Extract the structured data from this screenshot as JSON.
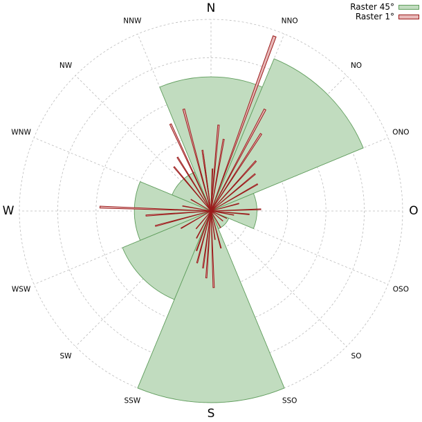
{
  "chart_data": {
    "type": "rose",
    "directions": [
      "N",
      "NNO",
      "NO",
      "ONO",
      "O",
      "OSO",
      "SO",
      "SSO",
      "S",
      "SSW",
      "SW",
      "WSW",
      "W",
      "WNW",
      "NW",
      "NNW"
    ],
    "rmax": 1.0,
    "grid": true,
    "legend_position": "top-right",
    "series": [
      {
        "name": "Raster 45°",
        "color": "#c1dcbf",
        "edge": "#5f9d5c",
        "bin_width_deg": 45,
        "bins": [
          {
            "center": 0,
            "value": 0.7
          },
          {
            "center": 45,
            "value": 0.86
          },
          {
            "center": 90,
            "value": 0.24
          },
          {
            "center": 135,
            "value": 0.1
          },
          {
            "center": 180,
            "value": 1.0
          },
          {
            "center": 225,
            "value": 0.5
          },
          {
            "center": 270,
            "value": 0.4
          },
          {
            "center": 315,
            "value": 0.22
          }
        ]
      },
      {
        "name": "Raster 1°",
        "color": "#e8b9b9",
        "edge": "#9b1b1b",
        "bin_width_deg": 1,
        "bins": [
          {
            "angle": 20,
            "value": 0.97
          },
          {
            "angle": 28,
            "value": 0.6
          },
          {
            "angle": 33,
            "value": 0.48
          },
          {
            "angle": 42,
            "value": 0.35
          },
          {
            "angle": 50,
            "value": 0.3
          },
          {
            "angle": 60,
            "value": 0.28
          },
          {
            "angle": 5,
            "value": 0.45
          },
          {
            "angle": 10,
            "value": 0.38
          },
          {
            "angle": -15,
            "value": 0.55
          },
          {
            "angle": -8,
            "value": 0.3
          },
          {
            "angle": 2,
            "value": 0.22
          },
          {
            "angle": -32,
            "value": 0.33
          },
          {
            "angle": 75,
            "value": 0.15
          },
          {
            "angle": 88,
            "value": 0.26
          },
          {
            "angle": 95,
            "value": 0.2
          },
          {
            "angle": 100,
            "value": 0.12
          },
          {
            "angle": 130,
            "value": 0.08
          },
          {
            "angle": 165,
            "value": 0.2
          },
          {
            "angle": 172,
            "value": 0.15
          },
          {
            "angle": 178,
            "value": 0.4
          },
          {
            "angle": 184,
            "value": 0.35
          },
          {
            "angle": 188,
            "value": 0.3
          },
          {
            "angle": 195,
            "value": 0.28
          },
          {
            "angle": 200,
            "value": 0.22
          },
          {
            "angle": 208,
            "value": 0.16
          },
          {
            "angle": 220,
            "value": 0.12
          },
          {
            "angle": 240,
            "value": 0.18
          },
          {
            "angle": 255,
            "value": 0.3
          },
          {
            "angle": 266,
            "value": 0.34
          },
          {
            "angle": 272,
            "value": 0.58
          },
          {
            "angle": 280,
            "value": 0.15
          },
          {
            "angle": 300,
            "value": 0.12
          },
          {
            "angle": 320,
            "value": 0.3
          },
          {
            "angle": 335,
            "value": 0.5
          },
          {
            "angle": 345,
            "value": 0.2
          },
          {
            "angle": 352,
            "value": 0.32
          },
          {
            "angle": 150,
            "value": 0.1
          },
          {
            "angle": 115,
            "value": 0.09
          }
        ]
      }
    ]
  }
}
